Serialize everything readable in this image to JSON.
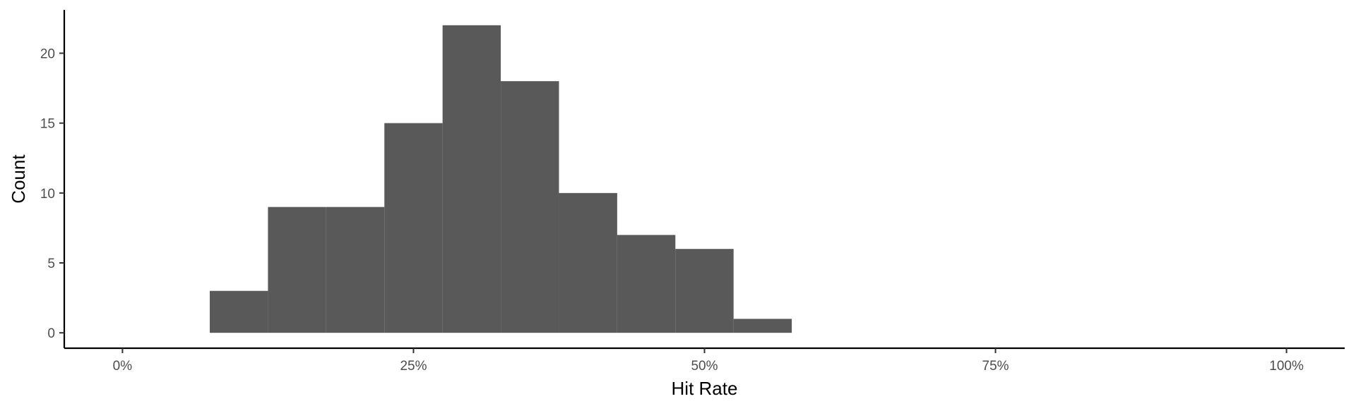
{
  "chart_data": {
    "type": "bar",
    "title": "",
    "xlabel": "Hit Rate",
    "ylabel": "Count",
    "bins": [
      {
        "start": 0.075,
        "end": 0.125,
        "count": 3
      },
      {
        "start": 0.125,
        "end": 0.175,
        "count": 9
      },
      {
        "start": 0.175,
        "end": 0.225,
        "count": 9
      },
      {
        "start": 0.225,
        "end": 0.275,
        "count": 15
      },
      {
        "start": 0.275,
        "end": 0.325,
        "count": 22
      },
      {
        "start": 0.325,
        "end": 0.375,
        "count": 18
      },
      {
        "start": 0.375,
        "end": 0.425,
        "count": 10
      },
      {
        "start": 0.425,
        "end": 0.475,
        "count": 7
      },
      {
        "start": 0.475,
        "end": 0.525,
        "count": 6
      },
      {
        "start": 0.525,
        "end": 0.575,
        "count": 1
      }
    ],
    "xlim": [
      -0.05,
      1.05
    ],
    "ylim": [
      -1.1,
      23.1
    ],
    "x_ticks": [
      {
        "value": 0.0,
        "label": "0%"
      },
      {
        "value": 0.25,
        "label": "25%"
      },
      {
        "value": 0.5,
        "label": "50%"
      },
      {
        "value": 0.75,
        "label": "75%"
      },
      {
        "value": 1.0,
        "label": "100%"
      }
    ],
    "y_ticks": [
      {
        "value": 0,
        "label": "0"
      },
      {
        "value": 5,
        "label": "5"
      },
      {
        "value": 10,
        "label": "10"
      },
      {
        "value": 15,
        "label": "15"
      },
      {
        "value": 20,
        "label": "20"
      }
    ],
    "grid": false,
    "bar_color": "#595959"
  }
}
